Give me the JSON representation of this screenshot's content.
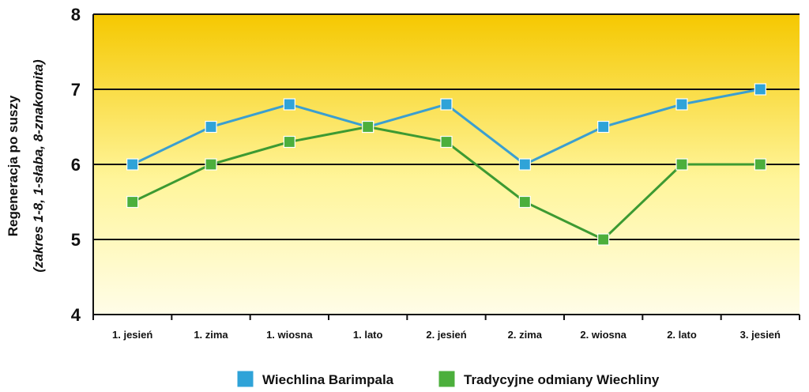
{
  "chart_data": {
    "type": "line",
    "title": "",
    "ylabel_line1": "Regeneracja po suszy",
    "ylabel_line2": "(zakres 1-8, 1-słaba, 8-znakomita)",
    "xlabel": "",
    "categories": [
      "1. jesień",
      "1. zima",
      "1. wiosna",
      "1. lato",
      "2. jesień",
      "2. zima",
      "2. wiosna",
      "2. lato",
      "3. jesień"
    ],
    "ylim": [
      4,
      8
    ],
    "yticks": [
      4,
      5,
      6,
      7,
      8
    ],
    "grid": true,
    "legend_position": "bottom",
    "background_gradient": [
      "#f5c800",
      "#fffde8"
    ],
    "series": [
      {
        "name": "Wiechlina Barimpala",
        "color": "#2fa3d8",
        "line_color": "#3b9fd0",
        "values": [
          6.0,
          6.5,
          6.8,
          6.5,
          6.8,
          6.0,
          6.5,
          6.8,
          7.0
        ]
      },
      {
        "name": "Tradycyjne odmiany Wiechliny",
        "color": "#4caf3c",
        "line_color": "#3d9a32",
        "values": [
          5.5,
          6.0,
          6.3,
          6.5,
          6.3,
          5.5,
          5.0,
          6.0,
          6.0
        ]
      }
    ]
  }
}
